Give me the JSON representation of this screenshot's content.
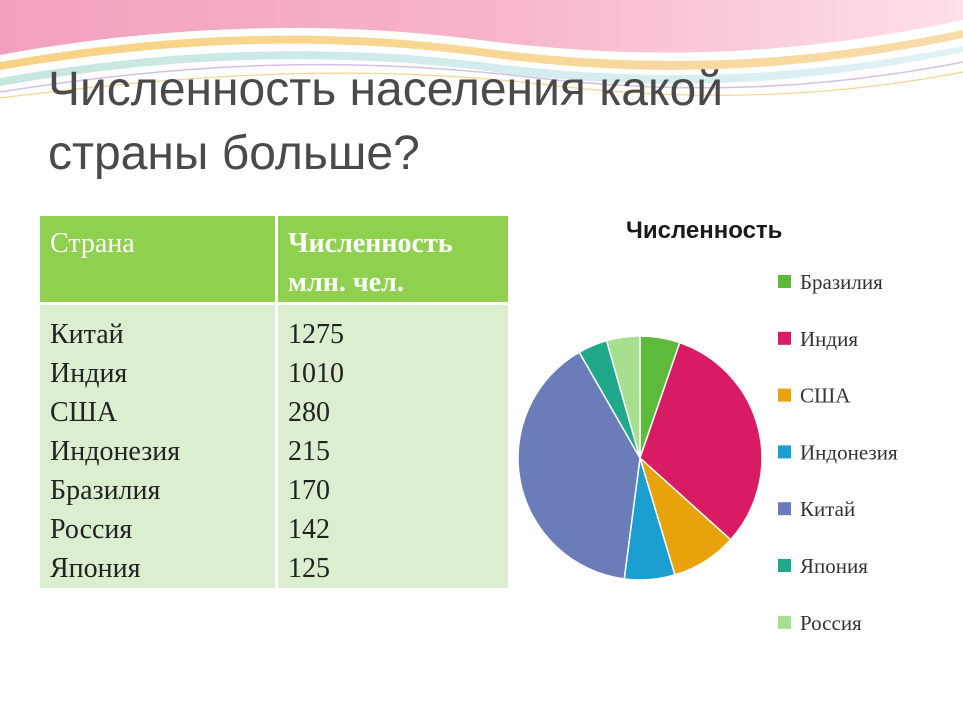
{
  "slide": {
    "title_line1": "Численность населения какой",
    "title_line2": "страны больше?"
  },
  "table": {
    "headers": [
      "Страна",
      "Численность",
      "млн. чел."
    ],
    "rows": [
      {
        "country": "Китай",
        "value": "1275"
      },
      {
        "country": "Индия",
        "value": "1010"
      },
      {
        "country": "США",
        "value": "280"
      },
      {
        "country": "Индонезия",
        "value": "215"
      },
      {
        "country": "Бразилия",
        "value": "170"
      },
      {
        "country": "Россия",
        "value": "142"
      },
      {
        "country": "Япония",
        "value": "125"
      }
    ]
  },
  "chart_data": {
    "type": "pie",
    "title": "Численность",
    "legend_position": "right",
    "slices": [
      {
        "label": "Бразилия",
        "value": 170,
        "color": "#5dba3b"
      },
      {
        "label": "Индия",
        "value": 1010,
        "color": "#d81b63"
      },
      {
        "label": "США",
        "value": 280,
        "color": "#e8a20c"
      },
      {
        "label": "Индонезия",
        "value": 215,
        "color": "#1a9fd0"
      },
      {
        "label": "Китай",
        "value": 1275,
        "color": "#6a7db8"
      },
      {
        "label": "Япония",
        "value": 125,
        "color": "#1fa88a"
      },
      {
        "label": "Россия",
        "value": 142,
        "color": "#a6e08f"
      }
    ]
  }
}
